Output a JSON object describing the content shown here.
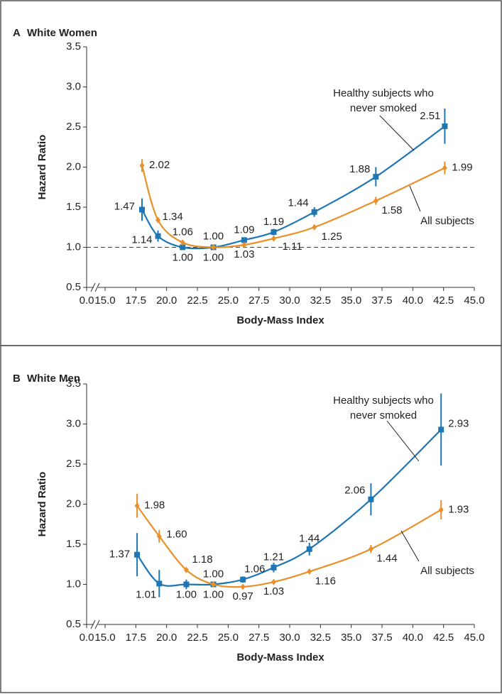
{
  "chart_data": [
    {
      "type": "line",
      "panel_label": "A",
      "title": "White Women",
      "x_label": "Body-Mass Index",
      "y_label": "Hazard Ratio",
      "xlim": [
        0,
        45
      ],
      "x_break": [
        0,
        15
      ],
      "ylim": [
        0.5,
        3.5
      ],
      "reference_line": 1,
      "xticks": [
        {
          "value": 0,
          "label": "0.0"
        },
        {
          "value": 15,
          "label": "15.0"
        },
        17.5,
        {
          "value": 20,
          "label": "20.0"
        },
        22.5,
        {
          "value": 25,
          "label": "25.0"
        },
        27.5,
        {
          "value": 30,
          "label": "30.0"
        },
        32.5,
        {
          "value": 35,
          "label": "35.0"
        },
        37.5,
        {
          "value": 40,
          "label": "40.0"
        },
        42.5,
        {
          "value": 45,
          "label": "45.0"
        }
      ],
      "yticks": [
        0.5,
        {
          "value": 1,
          "label": "1.0"
        },
        1.5,
        {
          "value": 2,
          "label": "2.0"
        },
        2.5,
        {
          "value": 3,
          "label": "3.0"
        },
        3.5
      ],
      "series": [
        {
          "name": [
            "Healthy subjects who",
            "never smoked"
          ],
          "color": "#1f76b4",
          "marker": "square",
          "x": [
            18.0,
            19.3,
            21.3,
            23.8,
            26.3,
            28.7,
            32.0,
            37.0,
            42.6
          ],
          "values": [
            1.47,
            1.14,
            1.0,
            1.0,
            1.09,
            1.19,
            1.44,
            1.88,
            2.51
          ],
          "value_labels": [
            "1.47",
            "1.14",
            "1.00",
            "1.00",
            "1.09",
            "1.19",
            "1.44",
            "1.88",
            "2.51"
          ],
          "errors": [
            0.14,
            0.07,
            0.03,
            0.02,
            0.03,
            0.04,
            0.06,
            0.12,
            0.22
          ]
        },
        {
          "name": [
            "All subjects"
          ],
          "color": "#e8902a",
          "marker": "diamond",
          "x": [
            18.0,
            19.3,
            21.3,
            23.8,
            26.3,
            28.7,
            32.0,
            37.0,
            42.6
          ],
          "values": [
            2.02,
            1.34,
            1.06,
            1.0,
            1.03,
            1.11,
            1.25,
            1.58,
            1.99
          ],
          "value_labels": [
            "2.02",
            "1.34",
            "1.06",
            "1.00",
            "1.03",
            "1.11",
            "1.25",
            "1.58",
            "1.99"
          ],
          "errors": [
            0.08,
            0.03,
            0.02,
            0.01,
            0.02,
            0.02,
            0.03,
            0.05,
            0.08
          ]
        }
      ]
    },
    {
      "type": "line",
      "panel_label": "B",
      "title": "White Men",
      "x_label": "Body-Mass Index",
      "y_label": "Hazard Ratio",
      "xlim": [
        0,
        45
      ],
      "x_break": [
        0,
        15
      ],
      "ylim": [
        0.5,
        3.5
      ],
      "xticks": [
        {
          "value": 0,
          "label": "0.0"
        },
        {
          "value": 15,
          "label": "15.0"
        },
        17.5,
        {
          "value": 20,
          "label": "20.0"
        },
        22.5,
        {
          "value": 25,
          "label": "25.0"
        },
        27.5,
        {
          "value": 30,
          "label": "30.0"
        },
        32.5,
        {
          "value": 35,
          "label": "35.0"
        },
        37.5,
        {
          "value": 40,
          "label": "40.0"
        },
        42.5,
        {
          "value": 45,
          "label": "45.0"
        }
      ],
      "yticks": [
        0.5,
        {
          "value": 1,
          "label": "1.0"
        },
        1.5,
        {
          "value": 2,
          "label": "2.0"
        },
        2.5,
        {
          "value": 3,
          "label": "3.0"
        },
        3.5
      ],
      "series": [
        {
          "name": [
            "Healthy subjects who",
            "never smoked"
          ],
          "color": "#1f76b4",
          "marker": "square",
          "x": [
            17.6,
            19.4,
            21.6,
            23.8,
            26.2,
            28.7,
            31.6,
            36.6,
            42.3
          ],
          "values": [
            1.37,
            1.01,
            1.0,
            1.0,
            1.06,
            1.21,
            1.44,
            2.06,
            2.93
          ],
          "value_labels": [
            "1.37",
            "1.01",
            "1.00",
            "1.00",
            "1.06",
            "1.21",
            "1.44",
            "2.06",
            "2.93"
          ],
          "errors": [
            0.27,
            0.17,
            0.06,
            0.03,
            0.04,
            0.06,
            0.08,
            0.2,
            0.45
          ]
        },
        {
          "name": [
            "All subjects"
          ],
          "color": "#e8902a",
          "marker": "diamond",
          "x": [
            17.6,
            19.4,
            21.6,
            23.8,
            26.2,
            28.7,
            31.6,
            36.6,
            42.3
          ],
          "values": [
            1.98,
            1.6,
            1.18,
            1.0,
            0.97,
            1.03,
            1.16,
            1.44,
            1.93
          ],
          "value_labels": [
            "1.98",
            "1.60",
            "1.18",
            "1.00",
            "0.97",
            "1.03",
            "1.16",
            "1.44",
            "1.93"
          ],
          "errors": [
            0.15,
            0.08,
            0.03,
            0.01,
            0.02,
            0.02,
            0.02,
            0.05,
            0.12
          ]
        }
      ]
    }
  ]
}
